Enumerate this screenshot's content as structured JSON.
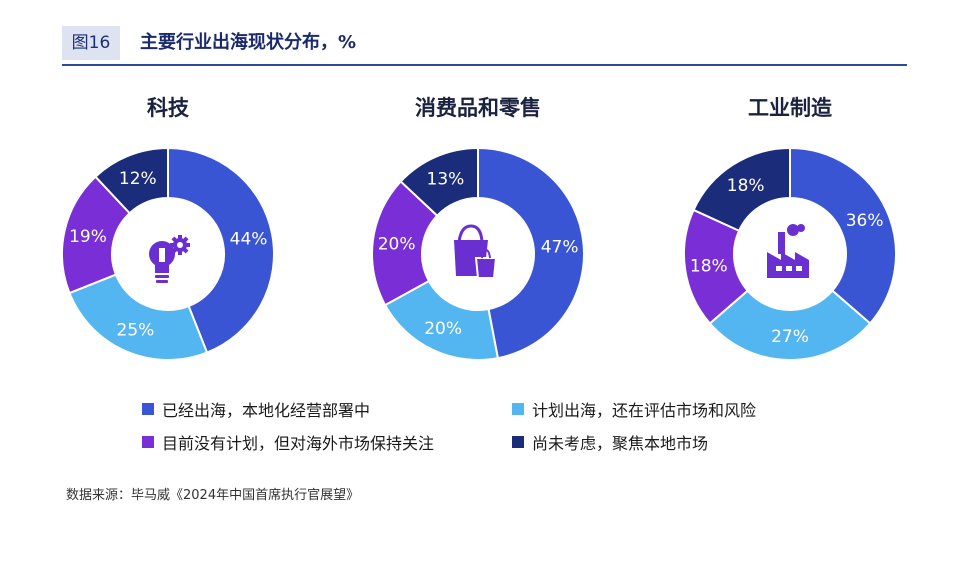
{
  "figure": {
    "label": "图16",
    "title": "主要行业出海现状分布，%"
  },
  "colors": {
    "series": [
      "#3a55d4",
      "#54b6f0",
      "#7a2fd6",
      "#1b2d7a"
    ],
    "header_rule": "#2b4a9c",
    "icon": "#6a2fd0"
  },
  "chart_data": [
    {
      "type": "pie",
      "title": "科技",
      "icon": "lightbulb-gear-icon",
      "categories": [
        "已经出海，本地化经营部署中",
        "计划出海，还在评估市场和风险",
        "目前没有计划，但对海外市场保持关注",
        "尚未考虑，聚焦本地市场"
      ],
      "values": [
        44,
        25,
        19,
        12
      ],
      "labels": [
        "44%",
        "25%",
        "19%",
        "12%"
      ]
    },
    {
      "type": "pie",
      "title": "消费品和零售",
      "icon": "shopping-bag-icon",
      "categories": [
        "已经出海，本地化经营部署中",
        "计划出海，还在评估市场和风险",
        "目前没有计划，但对海外市场保持关注",
        "尚未考虑，聚焦本地市场"
      ],
      "values": [
        47,
        20,
        20,
        13
      ],
      "labels": [
        "47%",
        "20%",
        "20%",
        "13%"
      ]
    },
    {
      "type": "pie",
      "title": "工业制造",
      "icon": "factory-icon",
      "categories": [
        "已经出海，本地化经营部署中",
        "计划出海，还在评估市场和风险",
        "目前没有计划，但对海外市场保持关注",
        "尚未考虑，聚焦本地市场"
      ],
      "values": [
        36,
        27,
        18,
        18
      ],
      "labels": [
        "36%",
        "27%",
        "18%",
        "18%"
      ]
    }
  ],
  "legend": [
    "已经出海，本地化经营部署中",
    "计划出海，还在评估市场和风险",
    "目前没有计划，但对海外市场保持关注",
    "尚未考虑，聚焦本地市场"
  ],
  "source": "数据来源：毕马威《2024年中国首席执行官展望》"
}
